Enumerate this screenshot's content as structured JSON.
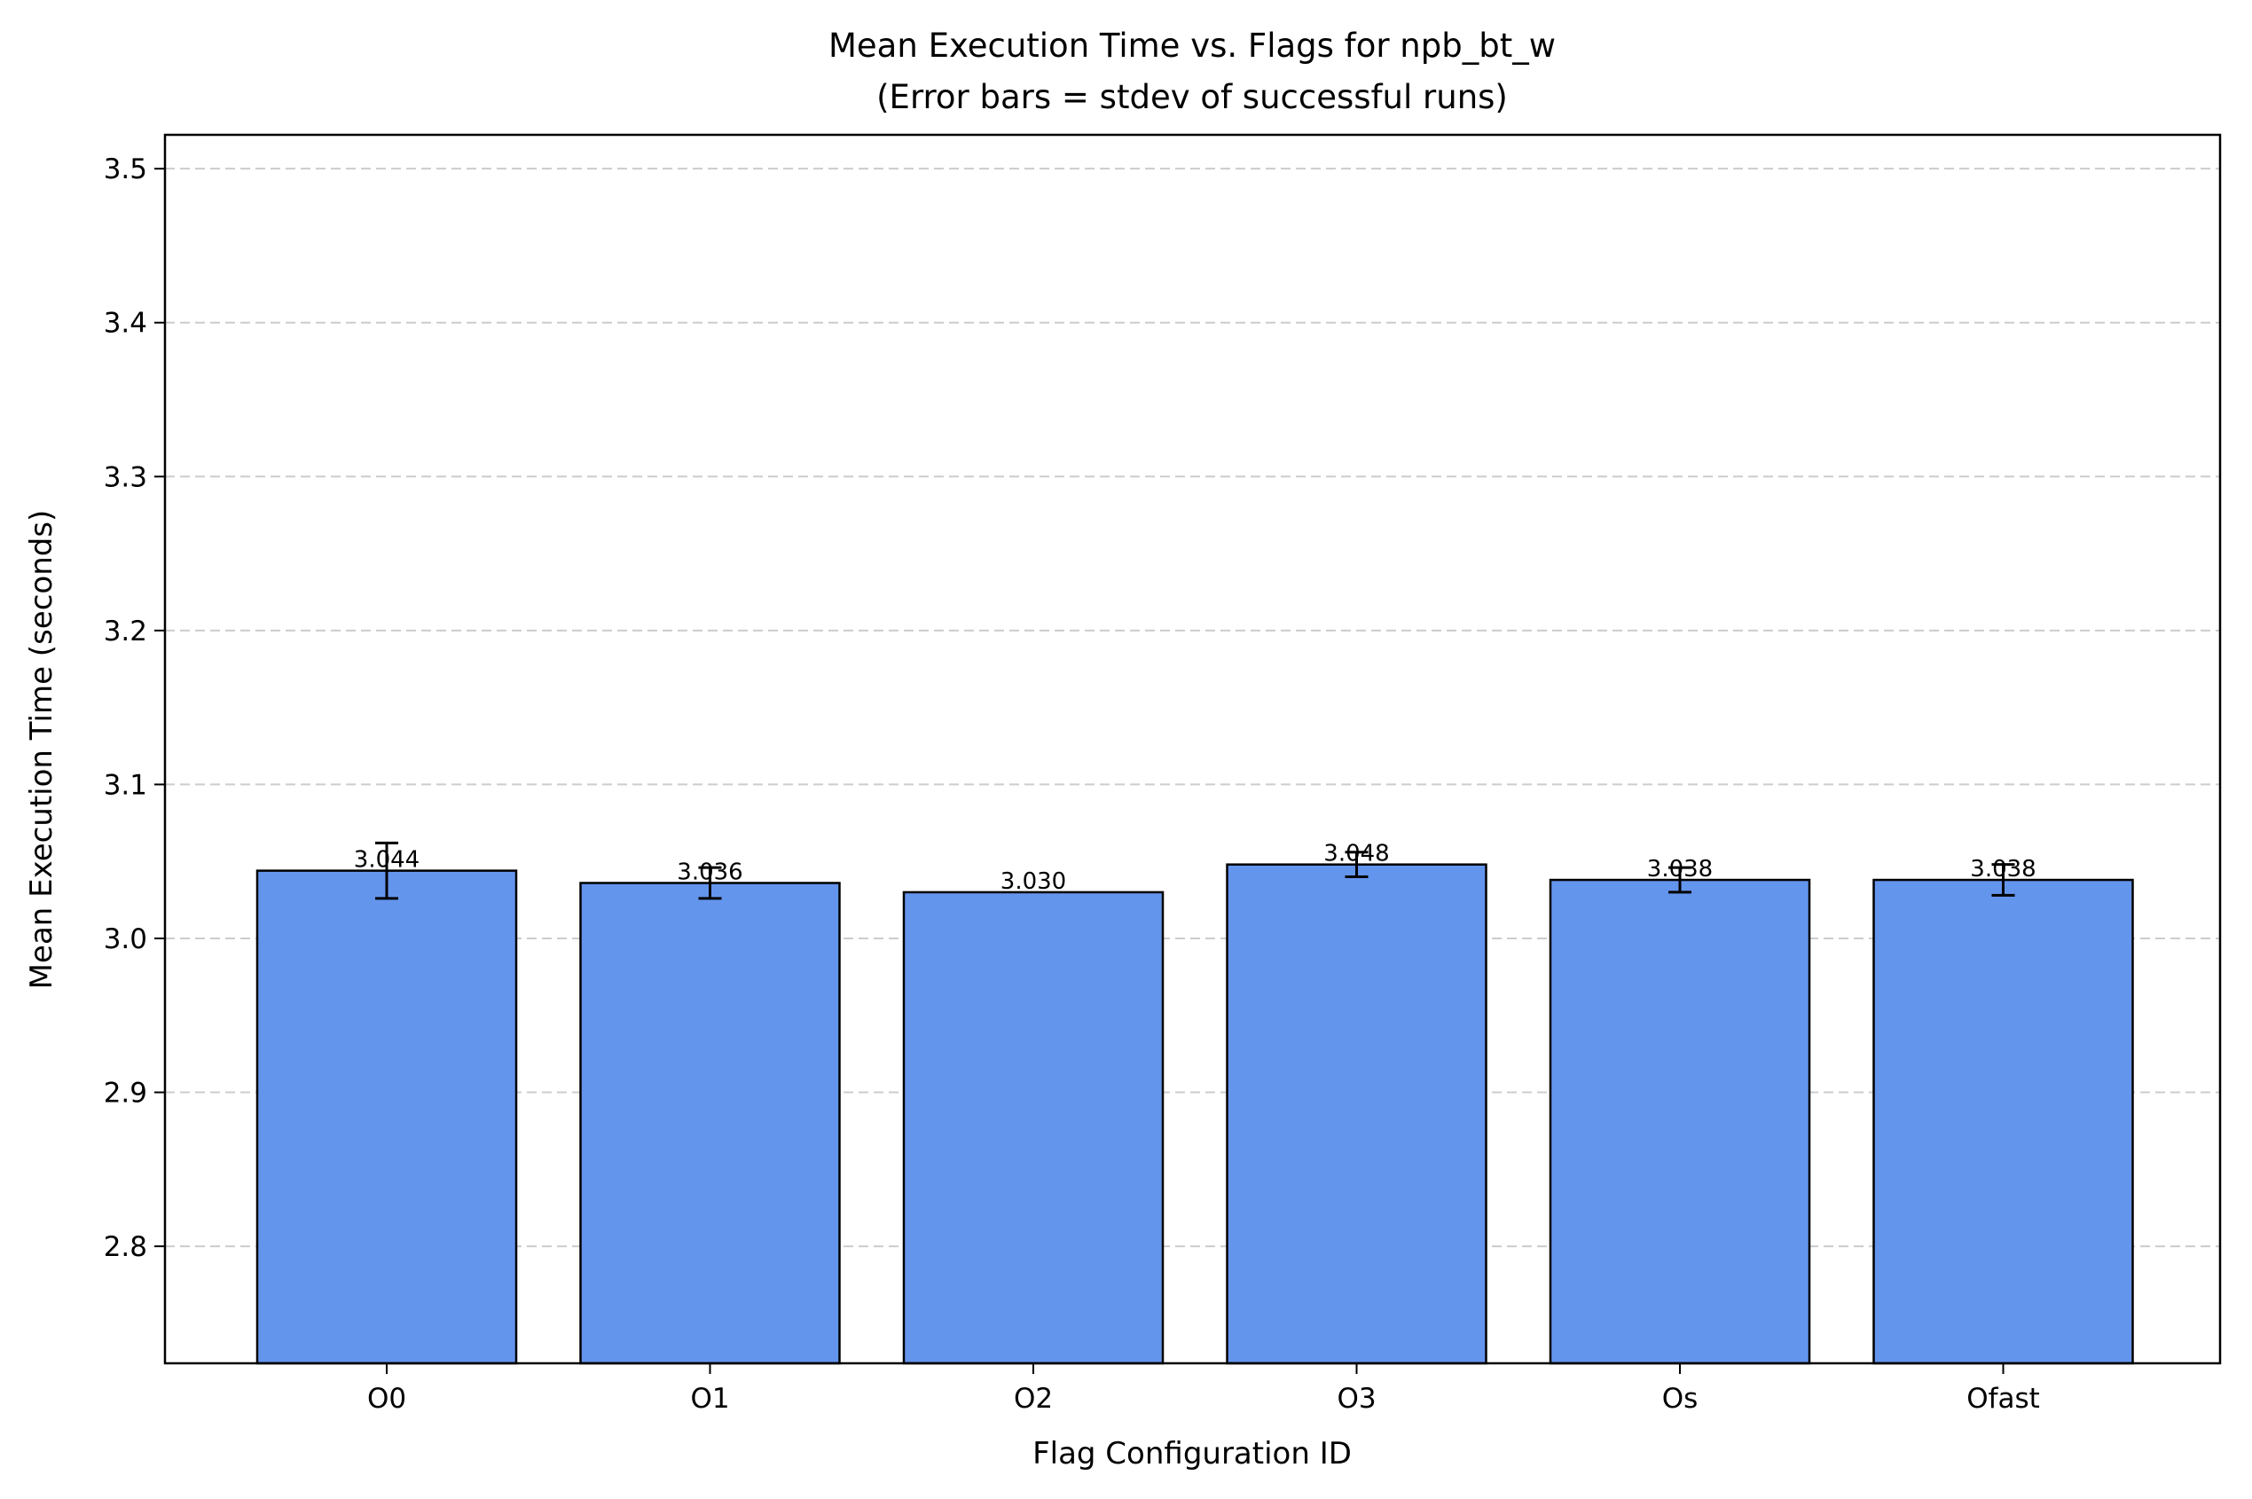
{
  "chart_data": {
    "type": "bar",
    "title": "Mean Execution Time vs. Flags for npb_bt_w",
    "subtitle": "(Error bars = stdev of successful runs)",
    "xlabel": "Flag Configuration ID",
    "ylabel": "Mean Execution Time (seconds)",
    "categories": [
      "O0",
      "O1",
      "O2",
      "O3",
      "Os",
      "Ofast"
    ],
    "values": [
      3.044,
      3.036,
      3.03,
      3.048,
      3.038,
      3.038
    ],
    "errors": [
      0.018,
      0.01,
      0.0,
      0.008,
      0.008,
      0.01
    ],
    "value_labels": [
      "3.044",
      "3.036",
      "3.030",
      "3.048",
      "3.038",
      "3.038"
    ],
    "ylim": [
      2.724,
      3.522
    ],
    "yticks": [
      2.8,
      2.9,
      3.0,
      3.1,
      3.2,
      3.3,
      3.4,
      3.5
    ],
    "ytick_labels": [
      "2.8",
      "2.9",
      "3.0",
      "3.1",
      "3.2",
      "3.3",
      "3.4",
      "3.5"
    ],
    "grid": "y, dashed",
    "colors": {
      "bar": "#6495ED",
      "edge": "#000000",
      "grid": "#cccccc"
    }
  }
}
